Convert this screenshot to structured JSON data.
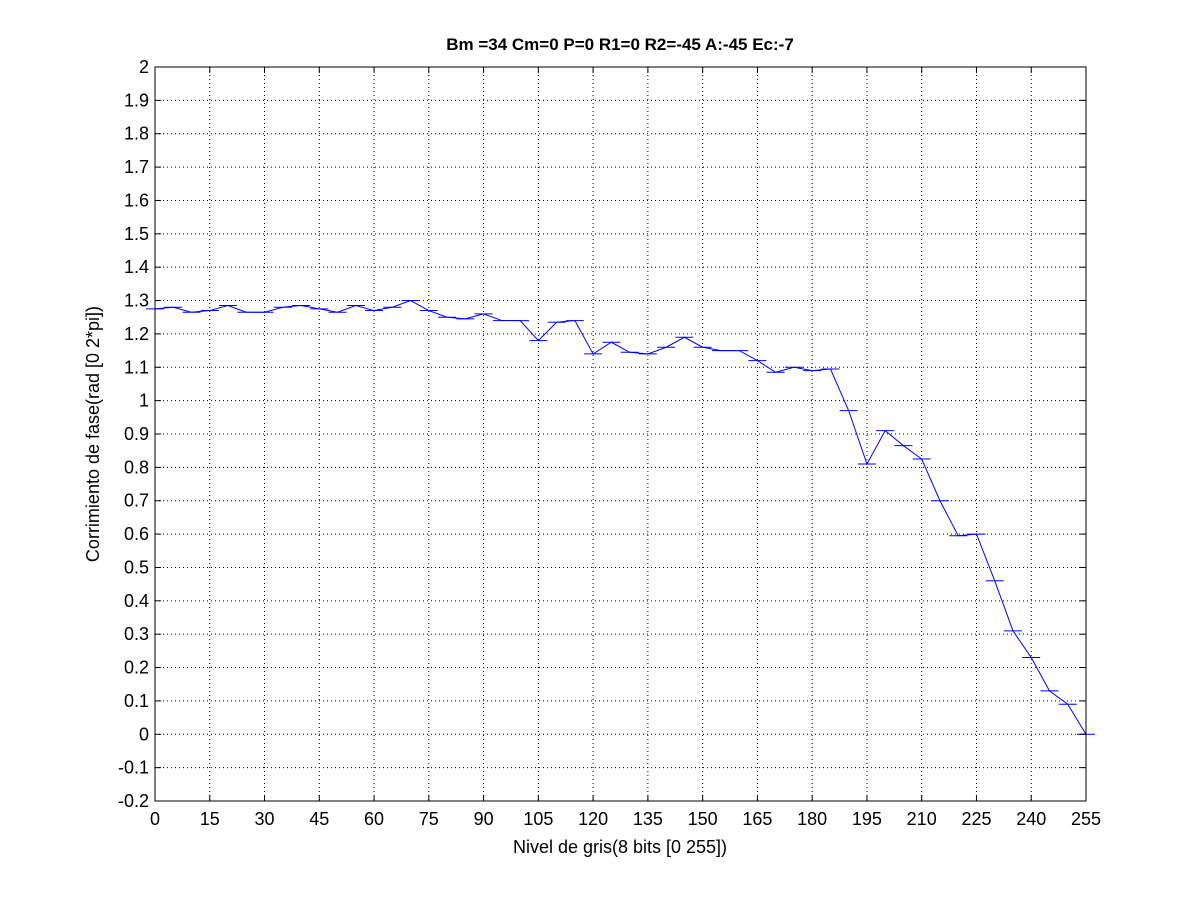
{
  "chart_data": {
    "type": "line",
    "title": "Bm =34  Cm=0  P=0  R1=0  R2=-45  A:-45  Ec:-7",
    "xlabel": "Nivel de gris(8 bits [0 255])",
    "ylabel": "Corrimiento de fase(rad [0 2*pi])",
    "xlim": [
      0,
      255
    ],
    "ylim": [
      -0.2,
      2
    ],
    "xticks": [
      0,
      15,
      30,
      45,
      60,
      75,
      90,
      105,
      120,
      135,
      150,
      165,
      180,
      195,
      210,
      225,
      240,
      255
    ],
    "xtick_labels": [
      "0",
      "15",
      "30",
      "45",
      "60",
      "75",
      "90",
      "105",
      "120",
      "135",
      "150",
      "165",
      "180",
      "195",
      "210",
      "225",
      "240",
      "255"
    ],
    "yticks": [
      -0.2,
      -0.1,
      0,
      0.1,
      0.2,
      0.3,
      0.4,
      0.5,
      0.6,
      0.7,
      0.8,
      0.9,
      1,
      1.1,
      1.2,
      1.3,
      1.4,
      1.5,
      1.6,
      1.7,
      1.8,
      1.9,
      2
    ],
    "ytick_labels": [
      "-0.2",
      "-0.1",
      "0",
      "0.1",
      "0.2",
      "0.3",
      "0.4",
      "0.5",
      "0.6",
      "0.7",
      "0.8",
      "0.9",
      "1",
      "1.1",
      "1.2",
      "1.3",
      "1.4",
      "1.5",
      "1.6",
      "1.7",
      "1.8",
      "1.9",
      "2"
    ],
    "grid": true,
    "line_color": "#0000ff",
    "series": [
      {
        "x": [
          0,
          5,
          10,
          15,
          20,
          25,
          30,
          35,
          40,
          45,
          50,
          55,
          60,
          65,
          70,
          75,
          80,
          85,
          90,
          95,
          100,
          105,
          110,
          115,
          120,
          125,
          130,
          135,
          140,
          145,
          150,
          155,
          160,
          165,
          170,
          175,
          180,
          185,
          190,
          195,
          200,
          205,
          210,
          215,
          220,
          225,
          230,
          235,
          240,
          245,
          250,
          255
        ],
        "y": [
          1.275,
          1.28,
          1.265,
          1.27,
          1.285,
          1.265,
          1.265,
          1.28,
          1.285,
          1.275,
          1.265,
          1.285,
          1.27,
          1.28,
          1.3,
          1.27,
          1.25,
          1.245,
          1.26,
          1.24,
          1.24,
          1.18,
          1.235,
          1.24,
          1.14,
          1.175,
          1.145,
          1.14,
          1.16,
          1.19,
          1.16,
          1.15,
          1.15,
          1.12,
          1.085,
          1.1,
          1.09,
          1.095,
          0.97,
          0.81,
          0.91,
          0.865,
          0.825,
          0.7,
          0.595,
          0.6,
          0.46,
          0.31,
          0.23,
          0.13,
          0.09,
          0.0
        ]
      }
    ]
  }
}
